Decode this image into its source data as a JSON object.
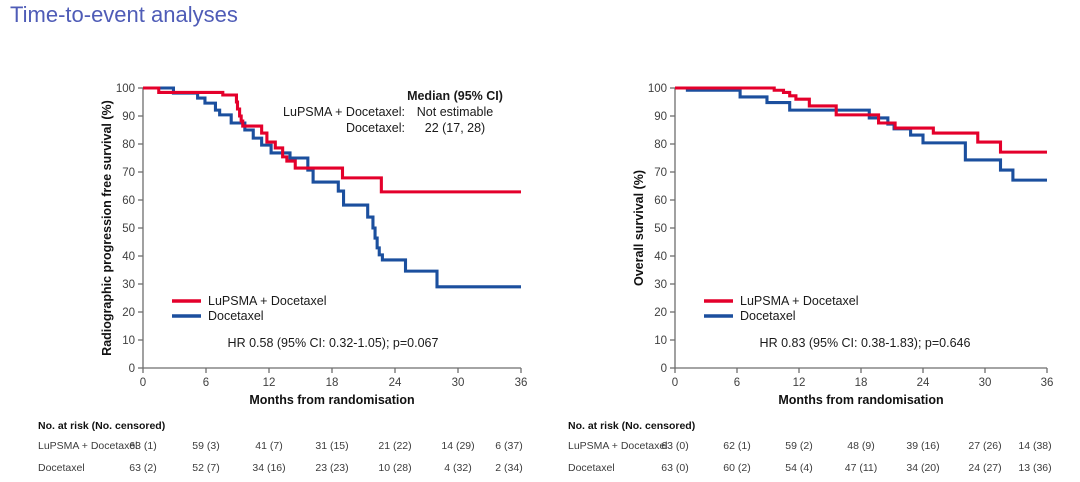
{
  "page": {
    "title": "Time-to-event analyses"
  },
  "colors": {
    "title": "#4f5cb7",
    "lupsma_docetaxel": "#e4002b",
    "docetaxel": "#1b4f9e",
    "axis_line": "#6e6e6e",
    "tick_text": "#404040",
    "annotation_text": "#1a1a1a"
  },
  "chart_data": [
    {
      "type": "line",
      "subtype": "kaplan-meier-step",
      "ylabel": "Radiographic progression free survival  (%)",
      "xlabel": "Months from randomisation",
      "xlim": [
        0,
        36
      ],
      "ylim": [
        0,
        100
      ],
      "xticks": [
        0,
        6,
        12,
        18,
        24,
        30,
        36
      ],
      "yticks": [
        0,
        10,
        20,
        30,
        40,
        50,
        60,
        70,
        80,
        90,
        100
      ],
      "grid": false,
      "legend_position": "lower-left-inside",
      "median_annotation": {
        "header": "Median (95% CI)",
        "rows": [
          {
            "label": "LuPSMA + Docetaxel:",
            "value": "Not estimable"
          },
          {
            "label": "Docetaxel:",
            "value": "22 (17, 28)"
          }
        ]
      },
      "hr_text": "HR 0.58 (95% CI: 0.32-1.05); p=0.067",
      "series": [
        {
          "name": "Docetaxel",
          "color": "#1b4f9e",
          "steps": [
            [
              0,
              100
            ],
            [
              2.9,
              98.2
            ],
            [
              5.2,
              96.4
            ],
            [
              5.9,
              94.6
            ],
            [
              6.9,
              92.1
            ],
            [
              7.3,
              90.4
            ],
            [
              8.4,
              87.5
            ],
            [
              9.7,
              85.0
            ],
            [
              10.5,
              82.1
            ],
            [
              11.3,
              79.6
            ],
            [
              12.2,
              76.8
            ],
            [
              14.0,
              75.0
            ],
            [
              15.7,
              70.7
            ],
            [
              16.2,
              66.4
            ],
            [
              18.6,
              63.2
            ],
            [
              19.1,
              58.2
            ],
            [
              21.4,
              53.9
            ],
            [
              21.9,
              50.0
            ],
            [
              22.1,
              46.4
            ],
            [
              22.3,
              42.9
            ],
            [
              22.5,
              40.4
            ],
            [
              22.8,
              38.6
            ],
            [
              25.0,
              34.6
            ],
            [
              28.0,
              29.0
            ]
          ]
        },
        {
          "name": "LuPSMA + Docetaxel",
          "color": "#e4002b",
          "steps": [
            [
              0,
              100
            ],
            [
              1.5,
              98.4
            ],
            [
              7.6,
              97.5
            ],
            [
              8.9,
              95.0
            ],
            [
              9.0,
              92.5
            ],
            [
              9.2,
              90.0
            ],
            [
              9.35,
              88.2
            ],
            [
              9.5,
              86.4
            ],
            [
              11.3,
              83.9
            ],
            [
              11.8,
              80.7
            ],
            [
              12.6,
              78.6
            ],
            [
              13.3,
              75.4
            ],
            [
              13.7,
              73.9
            ],
            [
              14.5,
              71.4
            ],
            [
              19.0,
              67.9
            ],
            [
              22.7,
              62.9
            ]
          ]
        }
      ],
      "risk_table": {
        "header": "No. at risk (No. censored)",
        "rows": [
          {
            "label": "LuPSMA + Docetaxel",
            "values": [
              "63 (1)",
              "59 (3)",
              "41 (7)",
              "31 (15)",
              "21 (22)",
              "14 (29)",
              "6 (37)"
            ]
          },
          {
            "label": "Docetaxel",
            "values": [
              "63 (2)",
              "52 (7)",
              "34 (16)",
              "23 (23)",
              "10 (28)",
              "4 (32)",
              "2 (34)"
            ]
          }
        ]
      }
    },
    {
      "type": "line",
      "subtype": "kaplan-meier-step",
      "ylabel": "Overall survival  (%)",
      "xlabel": "Months from randomisation",
      "xlim": [
        0,
        36
      ],
      "ylim": [
        0,
        100
      ],
      "xticks": [
        0,
        6,
        12,
        18,
        24,
        30,
        36
      ],
      "yticks": [
        0,
        10,
        20,
        30,
        40,
        50,
        60,
        70,
        80,
        90,
        100
      ],
      "grid": false,
      "legend_position": "lower-left-inside",
      "median_annotation": null,
      "hr_text": "HR 0.83 (95% CI: 0.38-1.83); p=0.646",
      "series": [
        {
          "name": "Docetaxel",
          "color": "#1b4f9e",
          "steps": [
            [
              0,
              100
            ],
            [
              1.2,
              99.2
            ],
            [
              6.3,
              96.8
            ],
            [
              8.9,
              94.8
            ],
            [
              11.1,
              92.1
            ],
            [
              18.8,
              89.3
            ],
            [
              20.6,
              87.1
            ],
            [
              21.2,
              85.4
            ],
            [
              22.8,
              83.2
            ],
            [
              24.0,
              80.4
            ],
            [
              28.1,
              74.3
            ],
            [
              31.5,
              70.7
            ],
            [
              32.7,
              67.1
            ]
          ]
        },
        {
          "name": "LuPSMA + Docetaxel",
          "color": "#e4002b",
          "steps": [
            [
              0,
              100
            ],
            [
              9.6,
              99.2
            ],
            [
              10.5,
              98.4
            ],
            [
              11.1,
              97.2
            ],
            [
              11.7,
              96.0
            ],
            [
              13.0,
              93.6
            ],
            [
              15.6,
              90.4
            ],
            [
              19.7,
              87.5
            ],
            [
              21.3,
              85.7
            ],
            [
              25.0,
              83.9
            ],
            [
              29.3,
              80.7
            ],
            [
              31.5,
              77.1
            ]
          ]
        }
      ],
      "risk_table": {
        "header": "No. at risk (No. censored)",
        "rows": [
          {
            "label": "LuPSMA + Docetaxel",
            "values": [
              "63 (0)",
              "62 (1)",
              "59 (2)",
              "48 (9)",
              "39 (16)",
              "27 (26)",
              "14 (38)"
            ]
          },
          {
            "label": "Docetaxel",
            "values": [
              "63 (0)",
              "60 (2)",
              "54 (4)",
              "47 (11)",
              "34 (20)",
              "24 (27)",
              "13 (36)"
            ]
          }
        ]
      }
    }
  ],
  "legend_entries": [
    "LuPSMA + Docetaxel",
    "Docetaxel"
  ]
}
